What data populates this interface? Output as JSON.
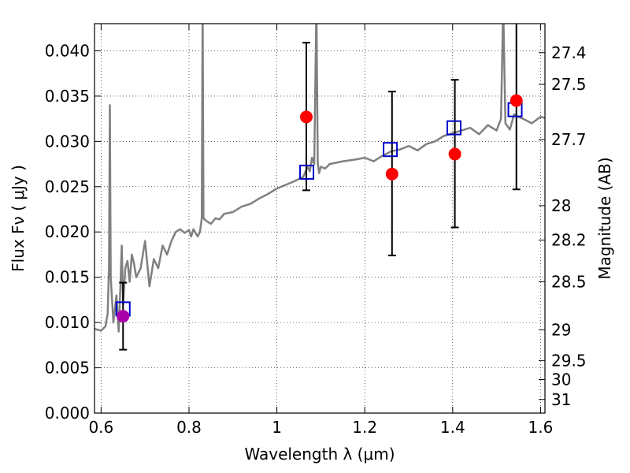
{
  "chart_data": {
    "type": "scatter",
    "xlabel": "Wavelength  λ (μm)",
    "ylabel": "Flux  Fν  ( μJy )",
    "y2label": "Magnitude (AB)",
    "xlim": [
      0.585,
      1.61
    ],
    "ylim": [
      0.0,
      0.043
    ],
    "grid": true,
    "x_ticks": [
      0.6,
      0.8,
      1.0,
      1.2,
      1.4,
      1.6
    ],
    "x_tick_labels": [
      "0.6",
      "0.8",
      "1",
      "1.2",
      "1.4",
      "1.6"
    ],
    "y_ticks": [
      0.0,
      0.005,
      0.01,
      0.015,
      0.02,
      0.025,
      0.03,
      0.035,
      0.04
    ],
    "y_tick_labels": [
      "0.000",
      "0.005",
      "0.010",
      "0.015",
      "0.020",
      "0.025",
      "0.030",
      "0.035",
      "0.040"
    ],
    "y2_tick_labels": [
      "27.4",
      "27.5",
      "27.7",
      "28",
      "28.2",
      "28.5",
      "29",
      "29.5",
      "30",
      "31"
    ],
    "y2_tick_flux": [
      0.0398,
      0.0363,
      0.0302,
      0.0229,
      0.0191,
      0.0145,
      0.0092,
      0.0058,
      0.0037,
      0.0015
    ],
    "colors": {
      "spectrum": "#808080",
      "observed": "#ff0000",
      "observed_upper_limit": "#aa00aa",
      "model_band": "#0000cc",
      "errorbar": "#000000"
    },
    "series": [
      {
        "type": "line",
        "x": [
          0.585,
          0.6,
          0.61,
          0.615,
          0.618,
          0.62,
          0.622,
          0.628,
          0.635,
          0.64,
          0.644,
          0.647,
          0.65,
          0.655,
          0.66,
          0.665,
          0.67,
          0.675,
          0.68,
          0.69,
          0.7,
          0.71,
          0.72,
          0.73,
          0.74,
          0.75,
          0.76,
          0.77,
          0.78,
          0.79,
          0.8,
          0.805,
          0.81,
          0.82,
          0.825,
          0.829,
          0.831,
          0.833,
          0.84,
          0.85,
          0.86,
          0.87,
          0.88,
          0.9,
          0.92,
          0.94,
          0.96,
          0.98,
          1.0,
          1.02,
          1.04,
          1.06,
          1.07,
          1.075,
          1.08,
          1.085,
          1.09,
          1.093,
          1.096,
          1.1,
          1.11,
          1.12,
          1.15,
          1.18,
          1.2,
          1.22,
          1.24,
          1.26,
          1.28,
          1.3,
          1.32,
          1.34,
          1.36,
          1.38,
          1.4,
          1.42,
          1.44,
          1.46,
          1.48,
          1.5,
          1.51,
          1.515,
          1.52,
          1.53,
          1.54,
          1.55,
          1.56,
          1.58,
          1.6,
          1.61
        ],
        "y": [
          0.0093,
          0.0091,
          0.0096,
          0.011,
          0.016,
          0.034,
          0.015,
          0.01,
          0.013,
          0.009,
          0.014,
          0.0185,
          0.012,
          0.016,
          0.0168,
          0.0145,
          0.0175,
          0.0165,
          0.015,
          0.016,
          0.019,
          0.014,
          0.017,
          0.016,
          0.0185,
          0.0175,
          0.019,
          0.02,
          0.0203,
          0.0199,
          0.0202,
          0.0195,
          0.0203,
          0.0195,
          0.02,
          0.0215,
          0.045,
          0.0215,
          0.0212,
          0.0209,
          0.0215,
          0.0214,
          0.022,
          0.0222,
          0.0228,
          0.0231,
          0.0237,
          0.0242,
          0.0248,
          0.0252,
          0.0256,
          0.0261,
          0.0272,
          0.0267,
          0.0282,
          0.0275,
          0.045,
          0.0276,
          0.0265,
          0.0272,
          0.027,
          0.0275,
          0.0278,
          0.028,
          0.0282,
          0.0278,
          0.0284,
          0.0289,
          0.0291,
          0.0295,
          0.029,
          0.0297,
          0.03,
          0.0306,
          0.0309,
          0.0312,
          0.0315,
          0.0308,
          0.0318,
          0.0312,
          0.0325,
          0.045,
          0.032,
          0.0313,
          0.033,
          0.0327,
          0.0325,
          0.032,
          0.0327,
          0.0326
        ]
      },
      {
        "type": "scatter_errorbar",
        "x": [
          0.65,
          1.067,
          1.262,
          1.405,
          1.545
        ],
        "y": [
          0.0107,
          0.0327,
          0.0264,
          0.0286,
          0.0345
        ],
        "yerr_low": [
          0.0037,
          0.0081,
          0.009,
          0.0081,
          0.0098
        ],
        "yerr_high": [
          0.0037,
          0.0082,
          0.0091,
          0.0082,
          0.0099
        ],
        "colors": [
          "observed_upper_limit",
          "observed",
          "observed",
          "observed",
          "observed"
        ]
      },
      {
        "type": "scatter_open_square",
        "x": [
          0.65,
          1.068,
          1.258,
          1.403,
          1.542
        ],
        "y": [
          0.0115,
          0.0266,
          0.0291,
          0.0315,
          0.0335
        ]
      }
    ]
  }
}
